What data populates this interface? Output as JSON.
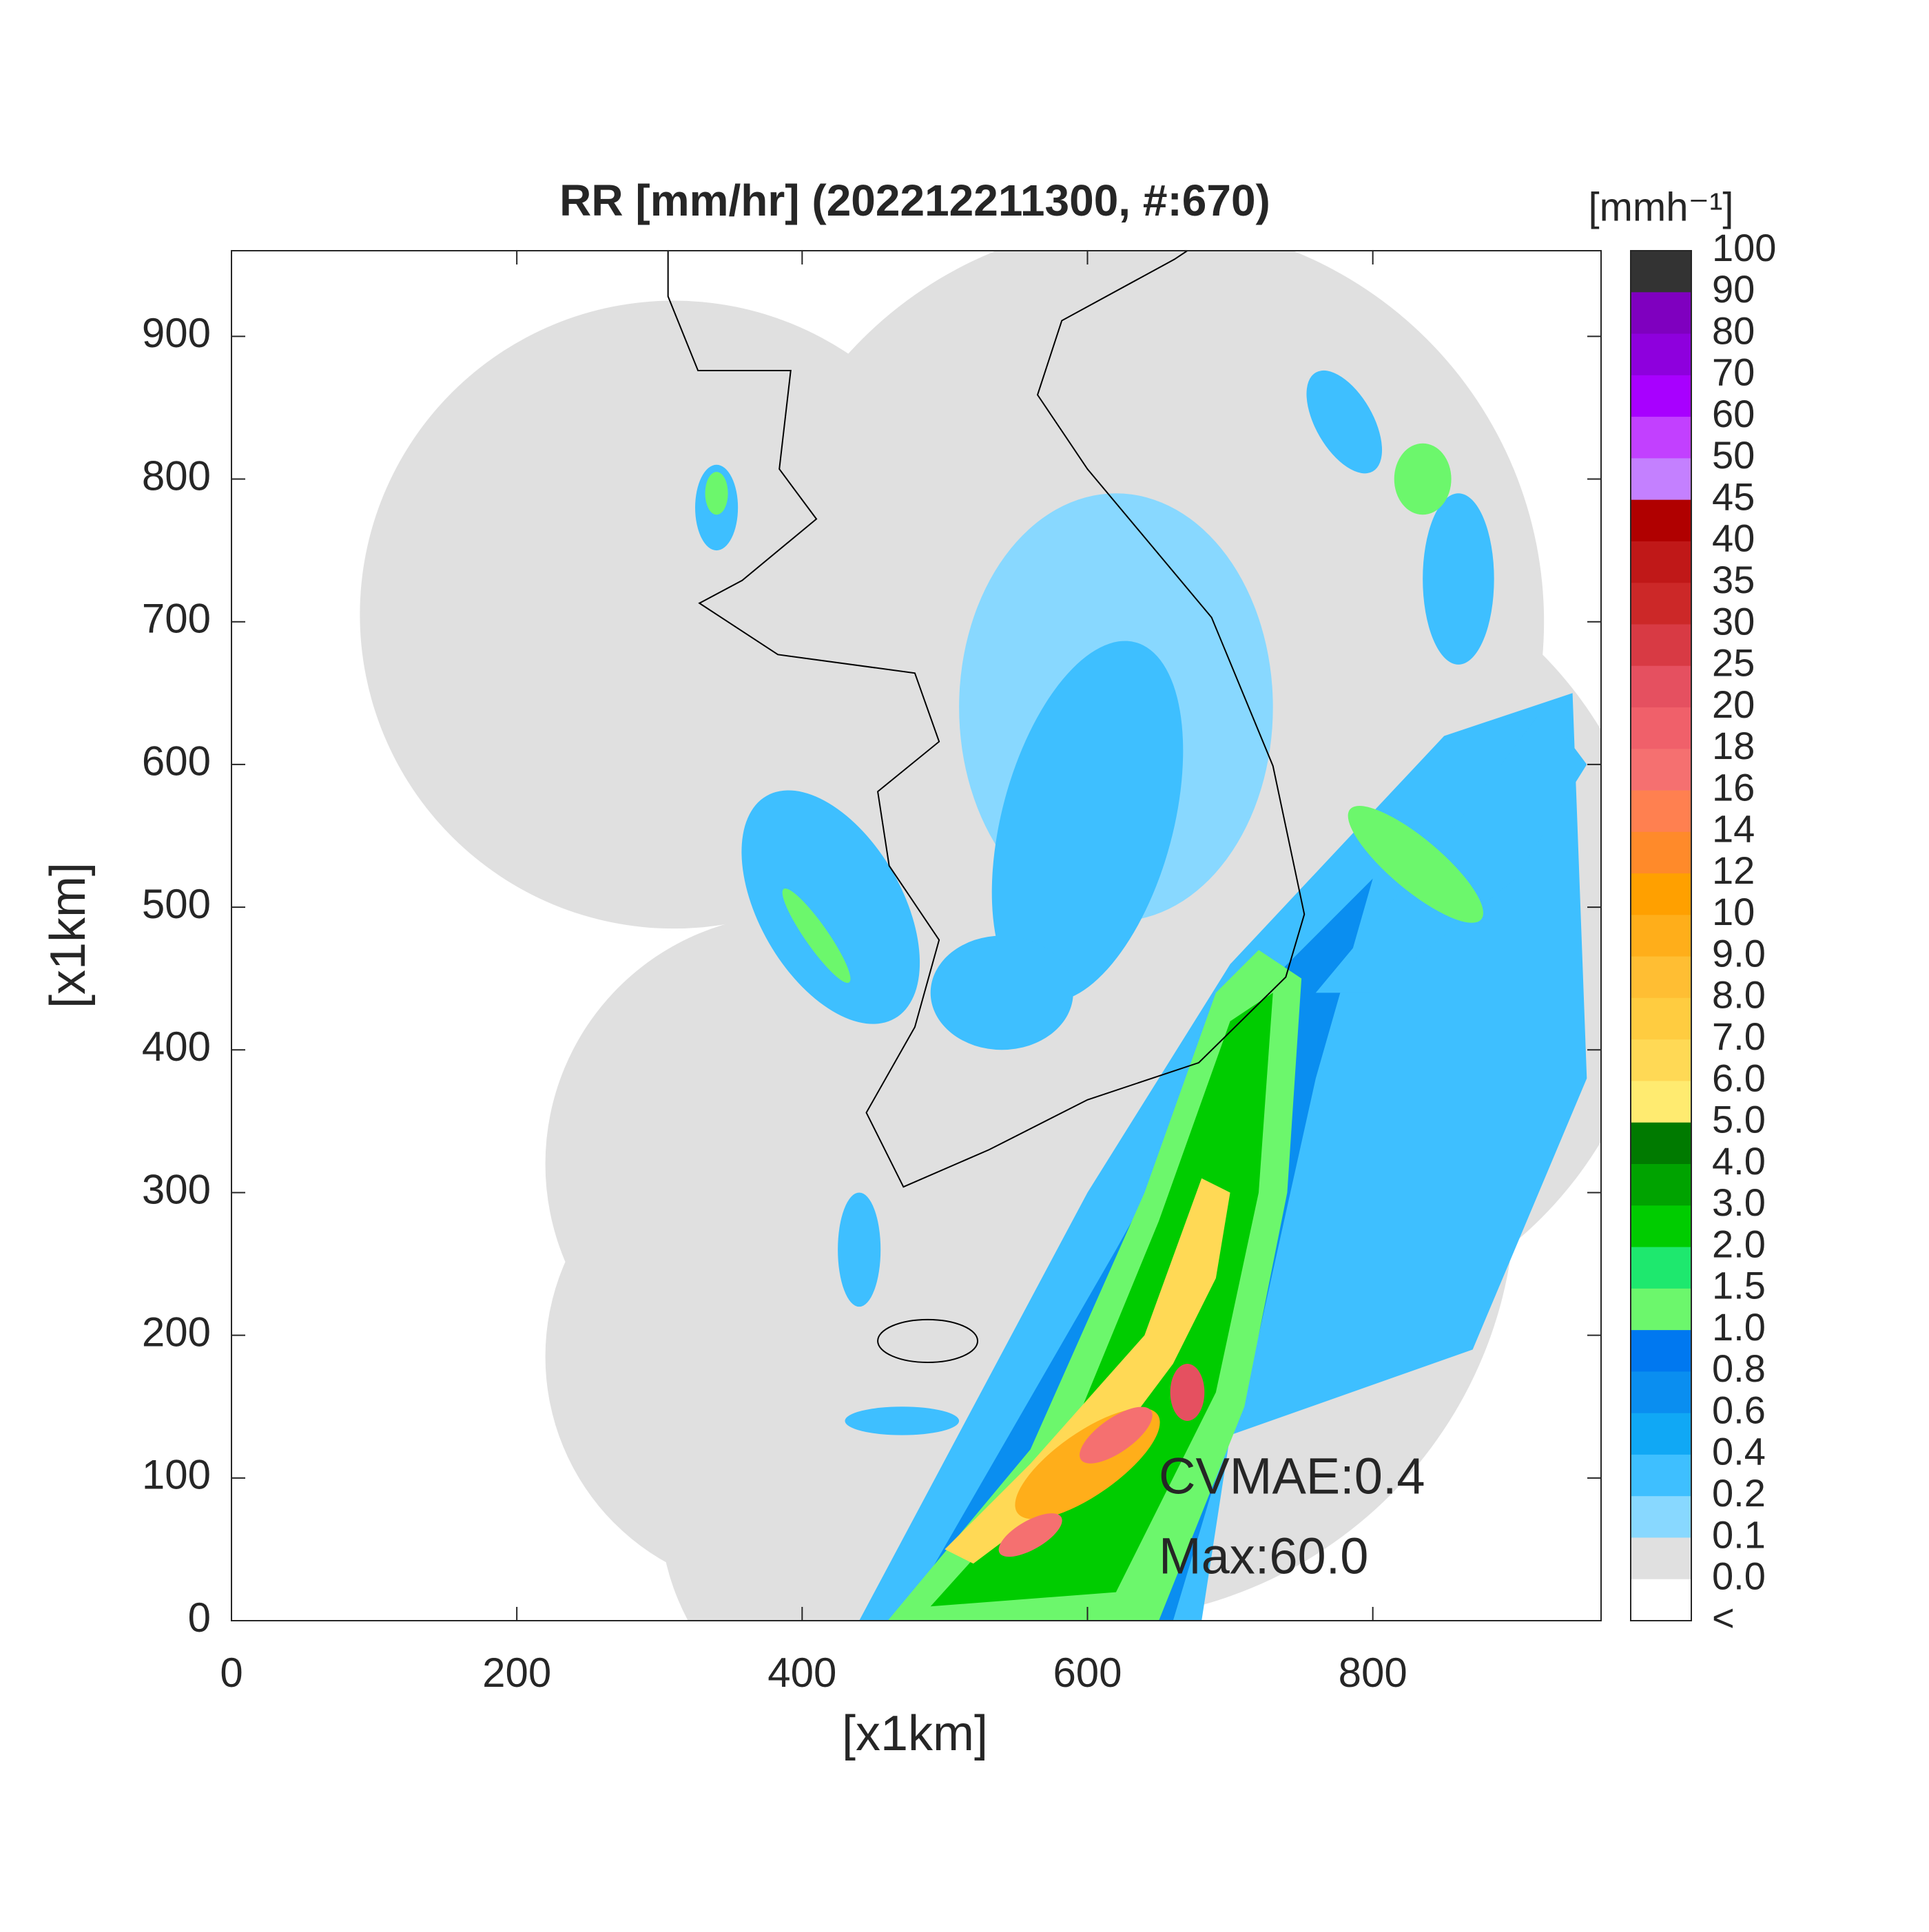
{
  "chart_data": {
    "type": "map",
    "title": "RR [mm/hr] (202212211300, #:670)",
    "xlabel": "[x1km]",
    "ylabel": "[x1km]",
    "xlim": [
      0,
      960
    ],
    "ylim": [
      0,
      960
    ],
    "xticks": [
      0,
      200,
      400,
      600,
      800
    ],
    "yticks": [
      0,
      100,
      200,
      300,
      400,
      500,
      600,
      700,
      800,
      900
    ],
    "annotations": [
      "CVMAE:0.4",
      "Max:60.0"
    ],
    "colorbar": {
      "title": "[mmh⁻¹]",
      "labels": [
        "100",
        "90",
        "80",
        "70",
        "60",
        "50",
        "45",
        "40",
        "35",
        "30",
        "25",
        "20",
        "18",
        "16",
        "14",
        "12",
        "10",
        "9.0",
        "8.0",
        "7.0",
        "6.0",
        "5.0",
        "4.0",
        "3.0",
        "2.0",
        "1.5",
        "1.0",
        "0.8",
        "0.6",
        "0.4",
        "0.2",
        "0.1",
        "0.0",
        "<"
      ],
      "colors": [
        "#333333",
        "#7f00bf",
        "#8e00dd",
        "#a800ff",
        "#c240ff",
        "#c480ff",
        "#b00000",
        "#c01818",
        "#cc2828",
        "#d83a44",
        "#e55060",
        "#f0606a",
        "#f57070",
        "#ff8050",
        "#ff8a2a",
        "#ffa000",
        "#ffae1a",
        "#ffbe33",
        "#ffcc40",
        "#ffd955",
        "#ffeb70",
        "#007a00",
        "#00a300",
        "#00cc00",
        "#1ee86e",
        "#6cf76c",
        "#0078f0",
        "#0a8ef0",
        "#10a8f5",
        "#3ebfff",
        "#88d8ff",
        "#e0e0e0",
        "#ffffff"
      ]
    }
  }
}
